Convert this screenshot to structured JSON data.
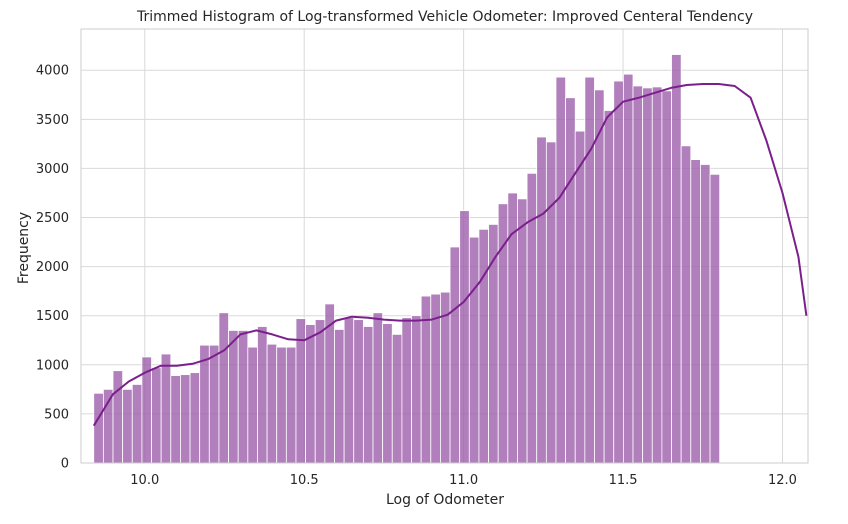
{
  "chart_data": {
    "type": "bar",
    "title": "Trimmed Histogram of Log-transformed Vehicle Odometer: Improved Centeral Tendency",
    "xlabel": "Log of Odometer",
    "ylabel": "Frequency",
    "xlim": [
      9.8,
      12.08
    ],
    "ylim": [
      0,
      4420
    ],
    "x_ticks": [
      10.0,
      10.5,
      11.0,
      11.5,
      12.0
    ],
    "x_tick_labels": [
      "10.0",
      "10.5",
      "11.0",
      "11.5",
      "12.0"
    ],
    "y_ticks": [
      0,
      500,
      1000,
      1500,
      2000,
      2500,
      3000,
      3500,
      4000
    ],
    "y_tick_labels": [
      "0",
      "500",
      "1000",
      "1500",
      "2000",
      "2500",
      "3000",
      "3500",
      "4000"
    ],
    "grid": true,
    "bin_start": 9.84,
    "bin_width": 0.0302,
    "bar_color": "#9a5ba9",
    "edge_color": "#ffffff",
    "kde_color": "#7b1f8c",
    "values": [
      710,
      750,
      940,
      750,
      800,
      1080,
      970,
      1110,
      890,
      900,
      920,
      1200,
      1200,
      1530,
      1350,
      1350,
      1180,
      1390,
      1210,
      1180,
      1180,
      1470,
      1410,
      1460,
      1620,
      1360,
      1480,
      1460,
      1390,
      1530,
      1420,
      1310,
      1480,
      1500,
      1700,
      1720,
      1740,
      2200,
      2570,
      2300,
      2380,
      2430,
      2640,
      2750,
      2690,
      2950,
      3320,
      3270,
      3930,
      3720,
      3380,
      3930,
      3800,
      3590,
      3890,
      3960,
      3840,
      3820,
      3830,
      3790,
      4160,
      3230,
      3090,
      3040,
      2940
    ],
    "kde": {
      "x": [
        9.84,
        9.9,
        9.95,
        10.0,
        10.05,
        10.1,
        10.15,
        10.2,
        10.25,
        10.3,
        10.35,
        10.4,
        10.45,
        10.5,
        10.55,
        10.6,
        10.65,
        10.7,
        10.75,
        10.8,
        10.85,
        10.9,
        10.95,
        11.0,
        11.05,
        11.1,
        11.15,
        11.2,
        11.25,
        11.3,
        11.35,
        11.4,
        11.45,
        11.5,
        11.55,
        11.6,
        11.65,
        11.7,
        11.75,
        11.8,
        11.85,
        11.9,
        11.95,
        12.0,
        12.05,
        12.075
      ],
      "y": [
        380,
        700,
        830,
        920,
        990,
        990,
        1010,
        1060,
        1150,
        1310,
        1350,
        1310,
        1260,
        1250,
        1330,
        1450,
        1490,
        1480,
        1460,
        1450,
        1450,
        1460,
        1510,
        1640,
        1840,
        2100,
        2330,
        2450,
        2540,
        2700,
        2950,
        3200,
        3520,
        3680,
        3720,
        3770,
        3820,
        3850,
        3860,
        3860,
        3840,
        3720,
        3280,
        2750,
        2100,
        1500
      ]
    }
  }
}
